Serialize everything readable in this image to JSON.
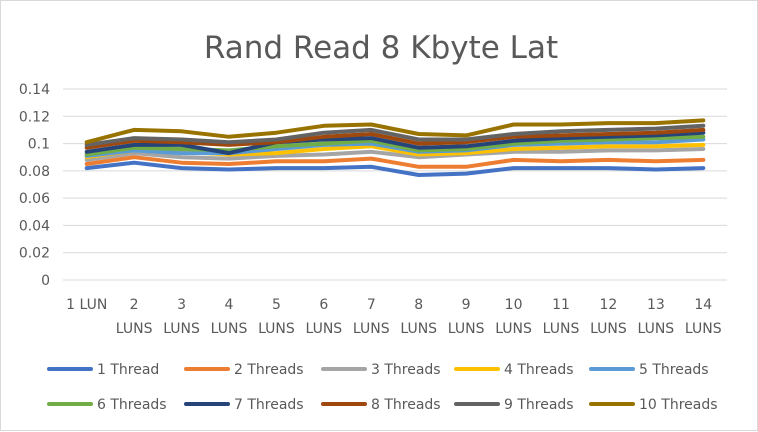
{
  "chart_data": {
    "type": "line",
    "title": "Rand Read 8 Kbyte Lat",
    "xlabel": "",
    "ylabel": "",
    "ylim": [
      0,
      0.14
    ],
    "yticks": [
      "0",
      "0.02",
      "0.04",
      "0.06",
      "0.08",
      "0.1",
      "0.12",
      "0.14"
    ],
    "categories": [
      [
        "1 LUN"
      ],
      [
        "2",
        "LUNS"
      ],
      [
        "3",
        "LUNS"
      ],
      [
        "4",
        "LUNS"
      ],
      [
        "5",
        "LUNS"
      ],
      [
        "6",
        "LUNS"
      ],
      [
        "7",
        "LUNS"
      ],
      [
        "8",
        "LUNS"
      ],
      [
        "9",
        "LUNS"
      ],
      [
        "10",
        "LUNS"
      ],
      [
        "11",
        "LUNS"
      ],
      [
        "12",
        "LUNS"
      ],
      [
        "13",
        "LUNS"
      ],
      [
        "14",
        "LUNS"
      ]
    ],
    "grid": true,
    "legend_position": "bottom",
    "series": [
      {
        "name": "1 Thread",
        "color": "#4472C4",
        "values": [
          0.082,
          0.086,
          0.082,
          0.081,
          0.082,
          0.082,
          0.083,
          0.077,
          0.078,
          0.082,
          0.082,
          0.082,
          0.081,
          0.082
        ]
      },
      {
        "name": "2 Threads",
        "color": "#ED7D31",
        "values": [
          0.085,
          0.09,
          0.086,
          0.085,
          0.087,
          0.087,
          0.089,
          0.083,
          0.083,
          0.088,
          0.087,
          0.088,
          0.087,
          0.088
        ]
      },
      {
        "name": "3 Threads",
        "color": "#A5A5A5",
        "values": [
          0.088,
          0.093,
          0.09,
          0.089,
          0.091,
          0.092,
          0.094,
          0.09,
          0.092,
          0.094,
          0.094,
          0.095,
          0.095,
          0.096
        ]
      },
      {
        "name": "4 Threads",
        "color": "#FFC000",
        "values": [
          0.09,
          0.095,
          0.094,
          0.092,
          0.093,
          0.096,
          0.098,
          0.092,
          0.093,
          0.096,
          0.097,
          0.098,
          0.098,
          0.099
        ]
      },
      {
        "name": "5 Threads",
        "color": "#5B9BD5",
        "values": [
          0.091,
          0.095,
          0.093,
          0.093,
          0.096,
          0.099,
          0.1,
          0.094,
          0.095,
          0.099,
          0.1,
          0.101,
          0.101,
          0.103
        ]
      },
      {
        "name": "6 Threads",
        "color": "#70AD47",
        "values": [
          0.092,
          0.097,
          0.096,
          0.095,
          0.098,
          0.1,
          0.102,
          0.095,
          0.096,
          0.1,
          0.102,
          0.103,
          0.104,
          0.105
        ]
      },
      {
        "name": "7 Threads",
        "color": "#264478",
        "values": [
          0.094,
          0.099,
          0.099,
          0.093,
          0.101,
          0.103,
          0.104,
          0.097,
          0.098,
          0.102,
          0.104,
          0.105,
          0.106,
          0.108
        ]
      },
      {
        "name": "8 Threads",
        "color": "#9E480E",
        "values": [
          0.097,
          0.102,
          0.101,
          0.099,
          0.101,
          0.105,
          0.107,
          0.1,
          0.101,
          0.105,
          0.106,
          0.107,
          0.108,
          0.11
        ]
      },
      {
        "name": "9 Threads",
        "color": "#636363",
        "values": [
          0.099,
          0.104,
          0.103,
          0.101,
          0.103,
          0.108,
          0.11,
          0.103,
          0.103,
          0.107,
          0.109,
          0.11,
          0.111,
          0.113
        ]
      },
      {
        "name": "10 Threads",
        "color": "#997300",
        "values": [
          0.101,
          0.11,
          0.109,
          0.105,
          0.108,
          0.113,
          0.114,
          0.107,
          0.106,
          0.114,
          0.114,
          0.115,
          0.115,
          0.117
        ]
      }
    ]
  }
}
